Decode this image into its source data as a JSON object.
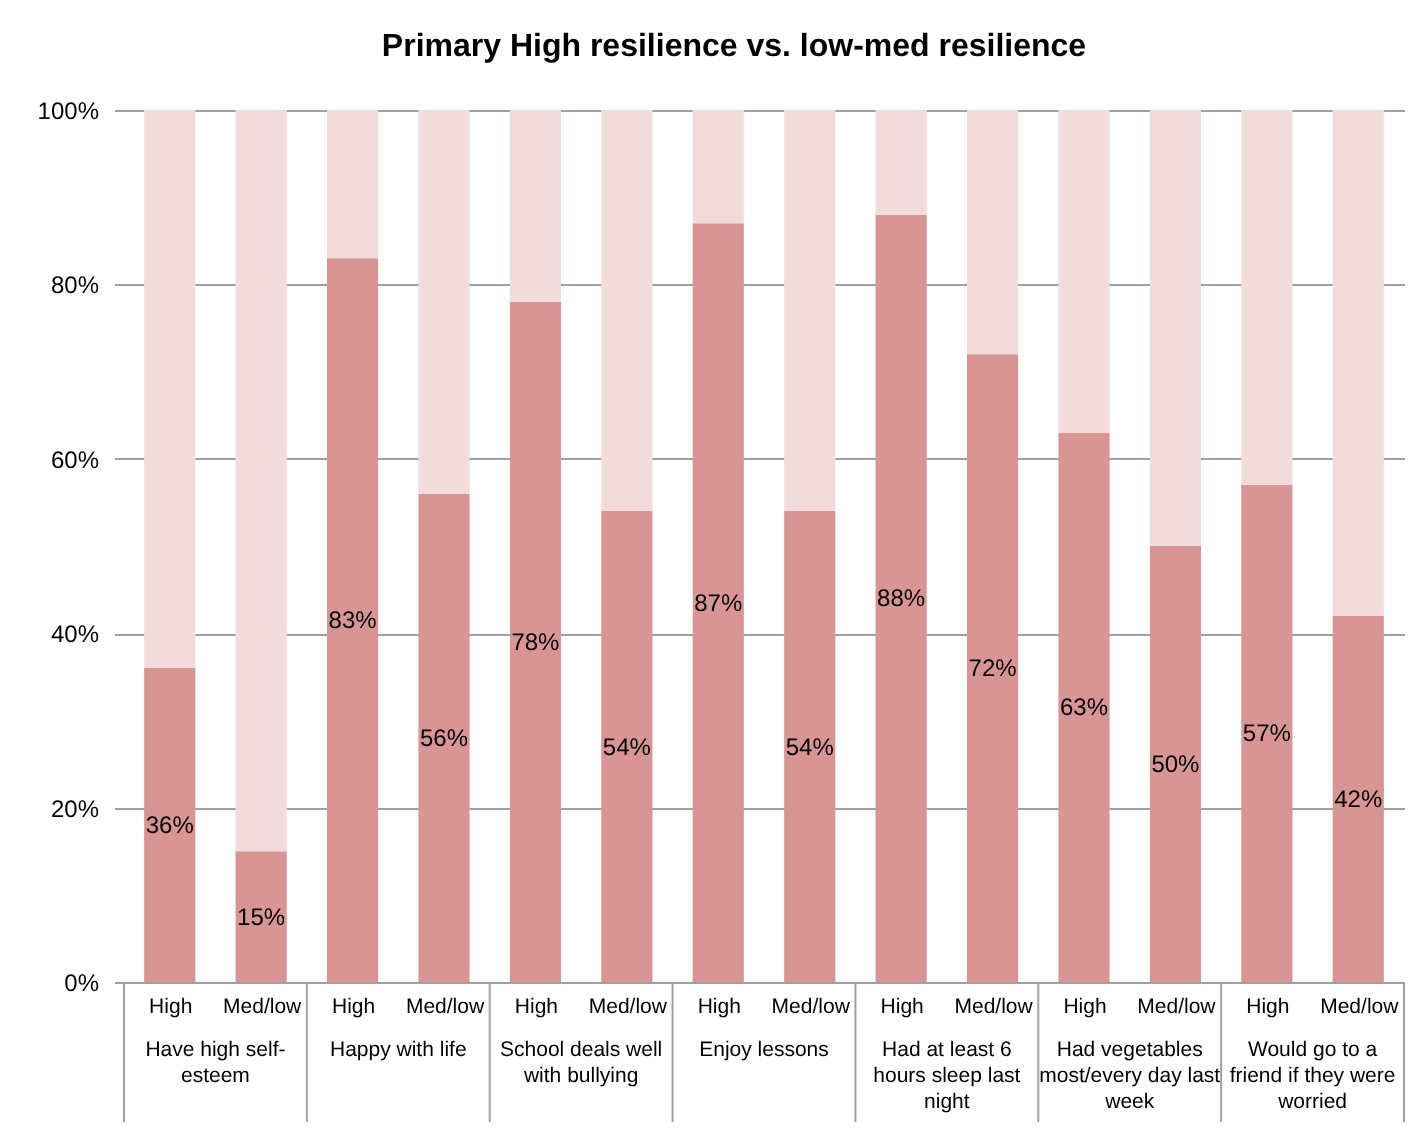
{
  "chart_data": {
    "type": "bar",
    "title": "Primary High resilience vs. low-med resilience",
    "categories": [
      "High",
      "Med/low",
      "High",
      "Med/low",
      "High",
      "Med/low",
      "High",
      "Med/low",
      "High",
      "Med/low",
      "High",
      "Med/low",
      "High",
      "Med/low"
    ],
    "stacked": true,
    "series": [
      {
        "color": "#d99594",
        "values": [
          36,
          15,
          83,
          56,
          78,
          54,
          87,
          54,
          88,
          72,
          63,
          50,
          57,
          42
        ],
        "value_labels": [
          "36%",
          "15%",
          "83%",
          "56%",
          "78%",
          "54%",
          "87%",
          "54%",
          "88%",
          "72%",
          "63%",
          "50%",
          "57%",
          "42%"
        ]
      },
      {
        "color": "#f2dcdb",
        "values": [
          64,
          85,
          17,
          44,
          22,
          46,
          13,
          46,
          12,
          28,
          37,
          50,
          43,
          58
        ]
      }
    ],
    "ylim": [
      0,
      100
    ],
    "yticks": [
      {
        "value": 0,
        "label": "0%"
      },
      {
        "value": 20,
        "label": "20%"
      },
      {
        "value": 40,
        "label": "40%"
      },
      {
        "value": 60,
        "label": "60%"
      },
      {
        "value": 80,
        "label": "80%"
      },
      {
        "value": 100,
        "label": "100%"
      }
    ],
    "grid": "y",
    "annotations": [
      "Have high self-esteem",
      "Happy with life",
      "School deals well with bullying",
      "Enjoy lessons",
      "Had at least 6 hours sleep last night",
      "Had vegetables most/every day last week",
      "Would go to a friend if they were worried"
    ]
  }
}
